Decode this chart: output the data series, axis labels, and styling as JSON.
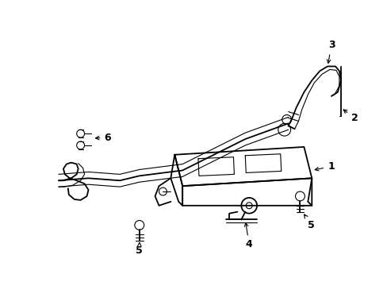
{
  "background_color": "#ffffff",
  "line_color": "#000000",
  "figsize": [
    4.89,
    3.6
  ],
  "dpi": 100,
  "lw_main": 1.3,
  "lw_thin": 0.8,
  "lw_thick": 2.0,
  "label_fontsize": 8
}
